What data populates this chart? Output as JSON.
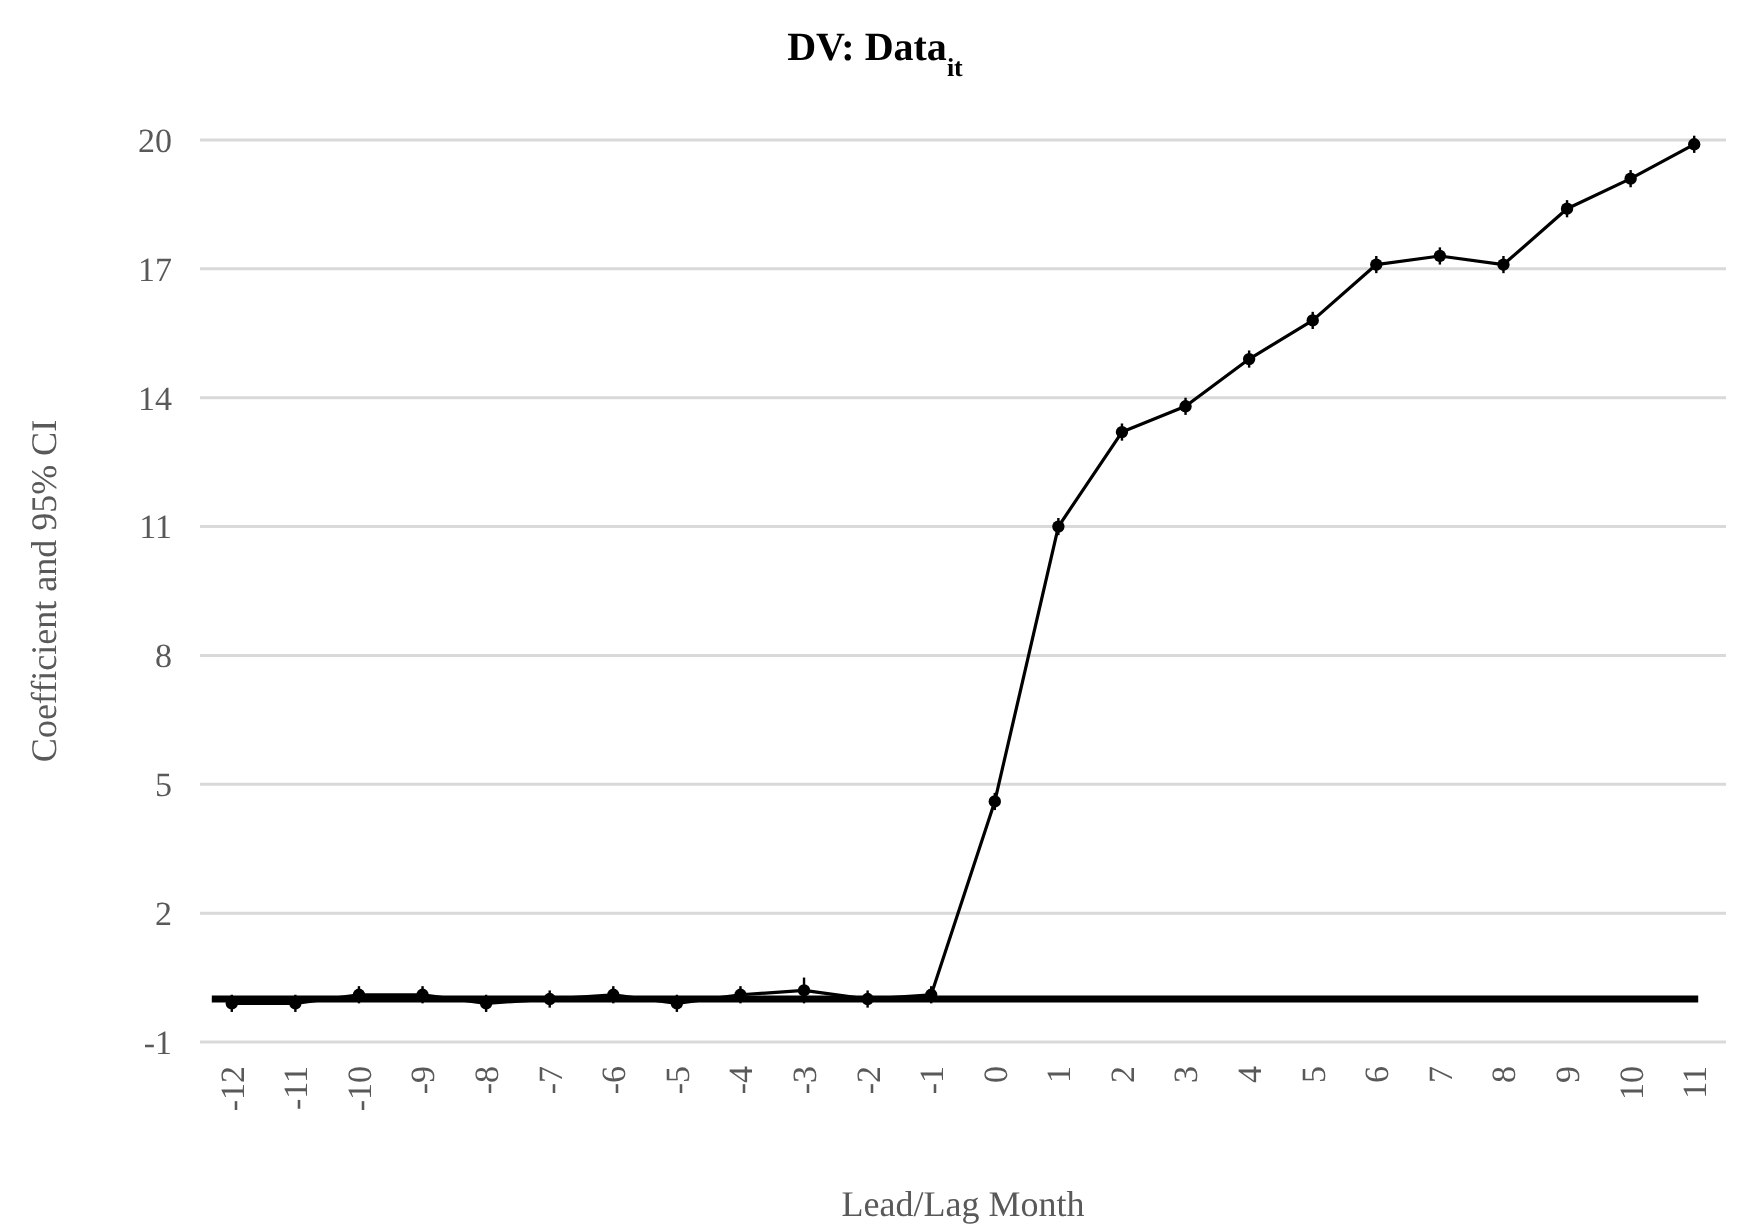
{
  "chart_data": {
    "type": "line",
    "title": "DV: Data$_{it}$",
    "xlabel": "Lead/Lag Month",
    "ylabel": "Coefficient and 95% CI",
    "categories": [
      "-12",
      "-11",
      "-10",
      "-9",
      "-8",
      "-7",
      "-6",
      "-5",
      "-4",
      "-3",
      "-2",
      "-1",
      "0",
      "1",
      "2",
      "3",
      "4",
      "5",
      "6",
      "7",
      "8",
      "9",
      "10",
      "11"
    ],
    "series": [
      {
        "color": "#000000",
        "values": [
          -0.1,
          -0.1,
          0.1,
          0.1,
          -0.1,
          0,
          0.1,
          -0.1,
          0.1,
          0.2,
          0,
          0.1,
          4.6,
          11.0,
          13.2,
          13.8,
          14.9,
          15.8,
          17.1,
          17.3,
          17.1,
          18.4,
          19.1,
          19.9
        ],
        "errors": [
          0.2,
          0.2,
          0.2,
          0.2,
          0.2,
          0.2,
          0.2,
          0.2,
          0.2,
          0.3,
          0.2,
          0.2,
          0.2,
          0.2,
          0.2,
          0.2,
          0.2,
          0.2,
          0.2,
          0.2,
          0.2,
          0.2,
          0.2,
          0.2
        ]
      }
    ],
    "ylim": [
      -1,
      20
    ],
    "yticks": [
      -1,
      2,
      5,
      8,
      11,
      14,
      17,
      20
    ],
    "grid": "y",
    "marker": "circle",
    "line_style": "solid",
    "ref_lines": [
      {
        "axis": "y",
        "value": 0,
        "color": "#000000",
        "line_style": "solid"
      }
    ]
  }
}
